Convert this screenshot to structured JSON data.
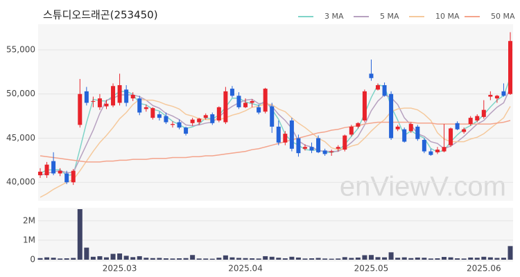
{
  "chart_data": [
    {
      "type": "candlestick",
      "title": "스튜디오드래곤(253450)",
      "watermark": "enViewV.com",
      "open": [
        40800,
        40800,
        42400,
        41000,
        41000,
        40000,
        46500,
        50300,
        49200,
        48500,
        48600,
        48700,
        49000,
        50500,
        49500,
        49500,
        48300,
        47300,
        47700,
        47500,
        46500,
        46800,
        46200,
        46700,
        46800,
        47300,
        47700,
        47000,
        46800,
        50600,
        49800,
        48500,
        49000,
        48500,
        48000,
        48600,
        46300,
        44500,
        47000,
        45000,
        43800,
        44000,
        45000,
        43600,
        43400,
        43800,
        43700,
        45400,
        46300,
        47000,
        52300,
        50500,
        51000,
        50000,
        46000,
        46000,
        45800,
        46300,
        44800,
        43500,
        43400,
        43500,
        44200,
        46700,
        45700,
        46600,
        47000,
        47400,
        49700,
        49500,
        50300,
        50000
      ],
      "high": [
        41600,
        42300,
        43400,
        41600,
        41300,
        41500,
        51700,
        50800,
        49700,
        50000,
        49300,
        51200,
        52300,
        51000,
        50200,
        49800,
        48800,
        48500,
        48000,
        47900,
        46900,
        47100,
        46300,
        47300,
        47300,
        47800,
        47900,
        48600,
        50800,
        50900,
        50200,
        49500,
        49400,
        48800,
        50700,
        49000,
        47000,
        45800,
        47300,
        45400,
        44300,
        44500,
        45300,
        43800,
        43700,
        44200,
        45400,
        46500,
        46800,
        50500,
        53900,
        51200,
        51300,
        50300,
        46500,
        46200,
        46800,
        46500,
        45000,
        43800,
        44000,
        46600,
        46200,
        46900,
        46200,
        47500,
        47700,
        49300,
        50300,
        49900,
        51200,
        57000
      ],
      "low": [
        40500,
        40500,
        40800,
        40700,
        39800,
        39700,
        46200,
        48700,
        48500,
        48200,
        48300,
        48500,
        48700,
        48600,
        49200,
        47600,
        48000,
        47100,
        47000,
        46600,
        46200,
        46000,
        45300,
        46400,
        46500,
        47100,
        46500,
        46800,
        46600,
        49600,
        48300,
        48400,
        48500,
        47700,
        47800,
        45600,
        44200,
        44200,
        43500,
        42900,
        43600,
        43300,
        43300,
        43000,
        43000,
        43500,
        43500,
        45200,
        46100,
        46800,
        51500,
        50400,
        49700,
        44800,
        45800,
        44500,
        45600,
        44700,
        43300,
        43000,
        43200,
        43400,
        44000,
        45900,
        45500,
        46400,
        46800,
        47200,
        49300,
        49000,
        49700,
        49900
      ],
      "close": [
        41200,
        42000,
        41000,
        41300,
        40000,
        41300,
        50000,
        49000,
        49200,
        49500,
        48900,
        50900,
        51000,
        49000,
        49900,
        47900,
        48500,
        48400,
        47300,
        46800,
        46600,
        46200,
        45500,
        47100,
        47200,
        47600,
        46700,
        48500,
        50300,
        49800,
        48500,
        49000,
        49200,
        47900,
        50600,
        46300,
        44500,
        45500,
        43800,
        43300,
        44000,
        43600,
        43400,
        43200,
        43500,
        44000,
        45300,
        46300,
        46700,
        50300,
        51800,
        51000,
        49800,
        45000,
        46300,
        44600,
        46600,
        44900,
        43500,
        43100,
        43700,
        44000,
        46100,
        46000,
        46000,
        47300,
        47500,
        48200,
        49900,
        49800,
        49800,
        56000
      ],
      "up_color": "#e8232b",
      "down_color": "#2463d8",
      "series": [
        {
          "name": "3 MA",
          "color": "#7fd4c8",
          "values": [
            41000,
            41400,
            41400,
            41430,
            40770,
            40870,
            43770,
            46770,
            49400,
            49230,
            49200,
            49770,
            50270,
            50300,
            49970,
            48930,
            48770,
            48270,
            48070,
            47500,
            46900,
            46530,
            46100,
            46270,
            46600,
            47300,
            47170,
            47600,
            48500,
            49530,
            49530,
            49100,
            48900,
            48700,
            49230,
            48270,
            47130,
            45430,
            44600,
            44200,
            43700,
            43630,
            43670,
            43400,
            43370,
            43570,
            44270,
            45200,
            46100,
            47770,
            49600,
            51030,
            50870,
            48600,
            47030,
            45300,
            45830,
            45370,
            45000,
            43830,
            43430,
            43600,
            44600,
            45370,
            46030,
            46430,
            46930,
            47670,
            48530,
            49300,
            49830,
            51870
          ]
        },
        {
          "name": "5 MA",
          "color": "#b7a1c0",
          "values": [
            40800,
            41000,
            41200,
            41300,
            41100,
            41100,
            42700,
            44300,
            45900,
            47800,
            49300,
            49500,
            49900,
            49900,
            49900,
            49700,
            49300,
            48700,
            48400,
            47800,
            47500,
            47100,
            46500,
            46400,
            46500,
            46700,
            46800,
            47400,
            48100,
            48600,
            49000,
            49300,
            49400,
            48900,
            49000,
            48600,
            47700,
            47000,
            46100,
            44700,
            44200,
            44000,
            43600,
            43500,
            43500,
            43500,
            43900,
            44500,
            45200,
            46500,
            48100,
            49200,
            49900,
            49600,
            48800,
            47300,
            46500,
            45500,
            45200,
            44600,
            44400,
            43800,
            44100,
            44600,
            45200,
            45900,
            46600,
            47000,
            47800,
            48500,
            49000,
            50700
          ]
        },
        {
          "name": "10 MA",
          "color": "#f5c99c",
          "values": [
            38300,
            38700,
            39200,
            39600,
            40000,
            40300,
            41300,
            42400,
            43500,
            44500,
            45300,
            46200,
            47200,
            47900,
            48800,
            49400,
            49300,
            49300,
            49100,
            48800,
            48600,
            48300,
            47700,
            47500,
            47200,
            47100,
            47100,
            47100,
            47300,
            47600,
            47800,
            48100,
            48500,
            48600,
            48900,
            48800,
            48300,
            48000,
            47300,
            46700,
            46200,
            45600,
            45000,
            44600,
            43900,
            43700,
            43800,
            44100,
            44300,
            45000,
            45800,
            46500,
            47100,
            48000,
            48300,
            48400,
            48400,
            48200,
            47700,
            47000,
            45600,
            44900,
            44600,
            44600,
            44600,
            44900,
            45100,
            45500,
            46100,
            46700,
            47300,
            48600
          ]
        },
        {
          "name": "50 MA",
          "color": "#f4a48c",
          "values": [
            43000,
            42900,
            42800,
            42700,
            42600,
            42500,
            42400,
            42300,
            42300,
            42300,
            42400,
            42400,
            42500,
            42500,
            42600,
            42600,
            42600,
            42700,
            42700,
            42700,
            42800,
            42800,
            42800,
            42900,
            42900,
            43000,
            43000,
            43100,
            43200,
            43300,
            43400,
            43500,
            43700,
            43800,
            44000,
            44200,
            44400,
            44600,
            44800,
            45000,
            45200,
            45400,
            45600,
            45700,
            45900,
            46000,
            46200,
            46300,
            46400,
            46600,
            46700,
            46800,
            46800,
            46800,
            46800,
            46800,
            46800,
            46700,
            46700,
            46700,
            46600,
            46600,
            46600,
            46600,
            46600,
            46600,
            46600,
            46600,
            46600,
            46700,
            46800,
            47000
          ]
        }
      ],
      "ylim": [
        37900,
        57900
      ],
      "yticks": [
        {
          "value": 40000,
          "label": "40,000"
        },
        {
          "value": 45000,
          "label": "45,000"
        },
        {
          "value": 50000,
          "label": "50,000"
        },
        {
          "value": 55000,
          "label": "55,000"
        }
      ],
      "legend": "top-right"
    },
    {
      "type": "bar",
      "categories": [
        null,
        null,
        null,
        null,
        null,
        null,
        null,
        null,
        null,
        null,
        null,
        null,
        "2025.03",
        null,
        null,
        null,
        null,
        null,
        null,
        null,
        null,
        null,
        null,
        null,
        null,
        null,
        null,
        null,
        null,
        null,
        null,
        "2025.04",
        null,
        null,
        null,
        null,
        null,
        null,
        null,
        null,
        null,
        null,
        null,
        null,
        null,
        null,
        null,
        null,
        null,
        null,
        "2025.05",
        null,
        null,
        null,
        null,
        null,
        null,
        null,
        null,
        null,
        null,
        null,
        null,
        null,
        null,
        null,
        null,
        "2025.06",
        null,
        null,
        null,
        null
      ],
      "values": [
        80000,
        120000,
        100000,
        60000,
        70000,
        90000,
        2600000,
        620000,
        150000,
        180000,
        120000,
        300000,
        320000,
        200000,
        130000,
        180000,
        100000,
        80000,
        90000,
        70000,
        60000,
        70000,
        80000,
        240000,
        60000,
        60000,
        50000,
        100000,
        220000,
        120000,
        90000,
        80000,
        70000,
        60000,
        180000,
        150000,
        100000,
        70000,
        150000,
        110000,
        60000,
        70000,
        90000,
        60000,
        50000,
        60000,
        130000,
        90000,
        110000,
        230000,
        240000,
        130000,
        120000,
        380000,
        100000,
        120000,
        80000,
        110000,
        100000,
        60000,
        70000,
        140000,
        120000,
        70000,
        60000,
        110000,
        100000,
        150000,
        120000,
        90000,
        100000,
        700000
      ],
      "color": "#3f4466",
      "ylim": [
        0,
        2600000
      ],
      "yticks": [
        0,
        {
          "value": 1000000,
          "label": "1M"
        },
        {
          "value": 2000000,
          "label": "2M"
        }
      ]
    }
  ]
}
